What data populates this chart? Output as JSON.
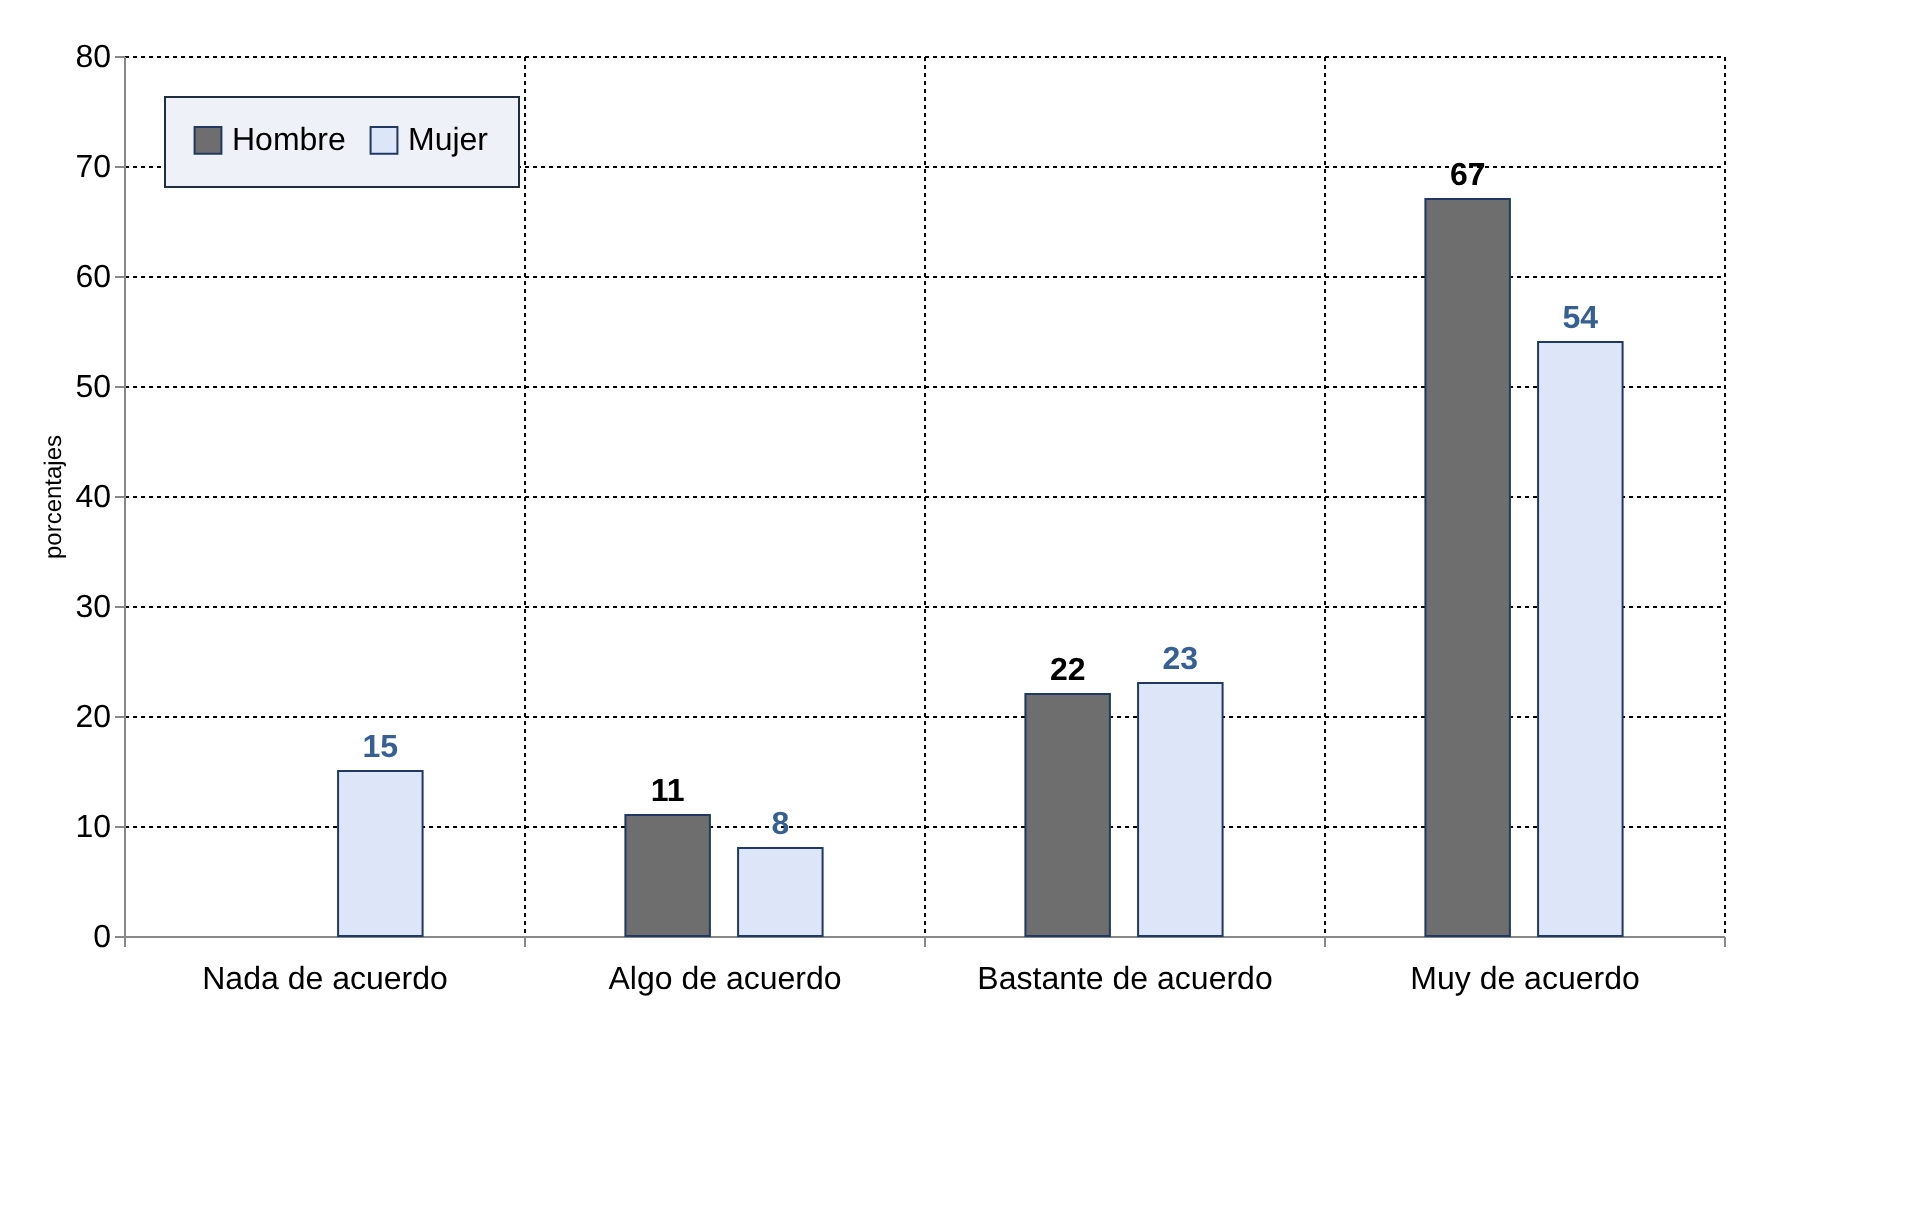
{
  "chart_data": {
    "type": "bar",
    "ylabel": "porcentajes",
    "categories": [
      "Nada de acuerdo",
      "Algo de acuerdo",
      "Bastante de acuerdo",
      "Muy de acuerdo"
    ],
    "series": [
      {
        "name": "Hombre",
        "color": "#6e6e6e",
        "values": [
          null,
          11,
          22,
          67
        ]
      },
      {
        "name": "Mujer",
        "color": "#dce6f8",
        "values": [
          15,
          8,
          23,
          54
        ]
      }
    ],
    "ylim": [
      0,
      80
    ],
    "yticks": [
      0,
      10,
      20,
      30,
      40,
      50,
      60,
      70,
      80
    ],
    "grid": true,
    "legend": "top left",
    "data_labels": true
  }
}
